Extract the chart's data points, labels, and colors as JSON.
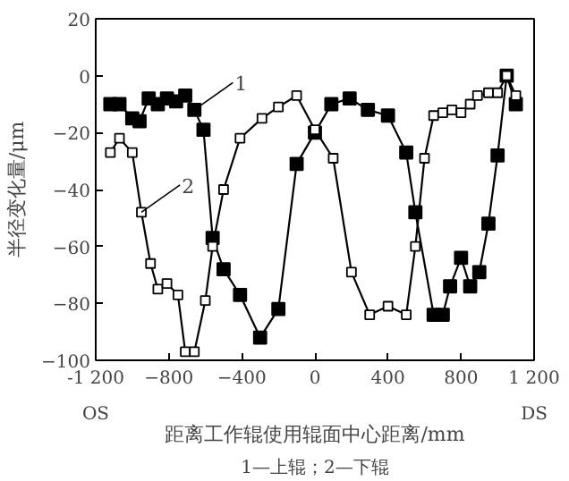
{
  "chart_data": {
    "type": "line",
    "xlabel": "距离工作辊使用辊面中心距离/mm",
    "ylabel": "半径变化量/μm",
    "xlim": [
      -1200,
      1200
    ],
    "ylim": [
      -100,
      20
    ],
    "xticks": [
      {
        "value": -1200,
        "label": "-1 200"
      },
      -800,
      -400,
      0,
      400,
      800,
      {
        "value": 1200,
        "label": "1 200"
      }
    ],
    "yticks": [
      -100,
      -80,
      -60,
      -40,
      -20,
      0,
      20
    ],
    "marker": "square",
    "line_style": "solid",
    "grid": false,
    "series": [
      {
        "color": "#000000",
        "x": [
          -1120,
          -1070,
          -1000,
          -960,
          -910,
          -860,
          -810,
          -760,
          -710,
          -660,
          -610,
          -560,
          -500,
          -410,
          -300,
          -200,
          -100,
          0,
          90,
          190,
          290,
          400,
          500,
          550,
          650,
          700,
          740,
          800,
          850,
          900,
          950,
          1000,
          1050,
          1100
        ],
        "values": [
          -10,
          -10,
          -15,
          -16,
          -8,
          -10,
          -8,
          -9,
          -7,
          -12,
          -19,
          -57,
          -68,
          -77,
          -92,
          -82,
          -31,
          -20,
          -10,
          -8,
          -12,
          -14,
          -27,
          -48,
          -84,
          -84,
          -74,
          -64,
          -74,
          -69,
          -52,
          -28,
          0,
          -10
        ]
      },
      {
        "color": "#000000",
        "x": [
          -1120,
          -1070,
          -1000,
          -950,
          -900,
          -860,
          -810,
          -750,
          -710,
          -660,
          -600,
          -560,
          -500,
          -410,
          -290,
          -200,
          -100,
          0,
          100,
          200,
          300,
          400,
          500,
          550,
          600,
          650,
          700,
          750,
          800,
          850,
          890,
          950,
          1000,
          1050,
          1100
        ],
        "values": [
          -27,
          -22,
          -27,
          -48,
          -66,
          -75,
          -73,
          -77,
          -97,
          -97,
          -79,
          -60,
          -40,
          -22,
          -15,
          -11,
          -7,
          -19,
          -29,
          -69,
          -84,
          -81,
          -84,
          -60,
          -29,
          -14,
          -13,
          -12,
          -13,
          -10,
          -7,
          -6,
          -6,
          0,
          -7
        ]
      }
    ],
    "annotations": [
      {
        "text": "1",
        "x": -660,
        "y": -12
      },
      {
        "text": "2",
        "x": -950,
        "y": -48
      },
      "OS",
      "DS",
      "1—上辊；2—下辊"
    ]
  }
}
